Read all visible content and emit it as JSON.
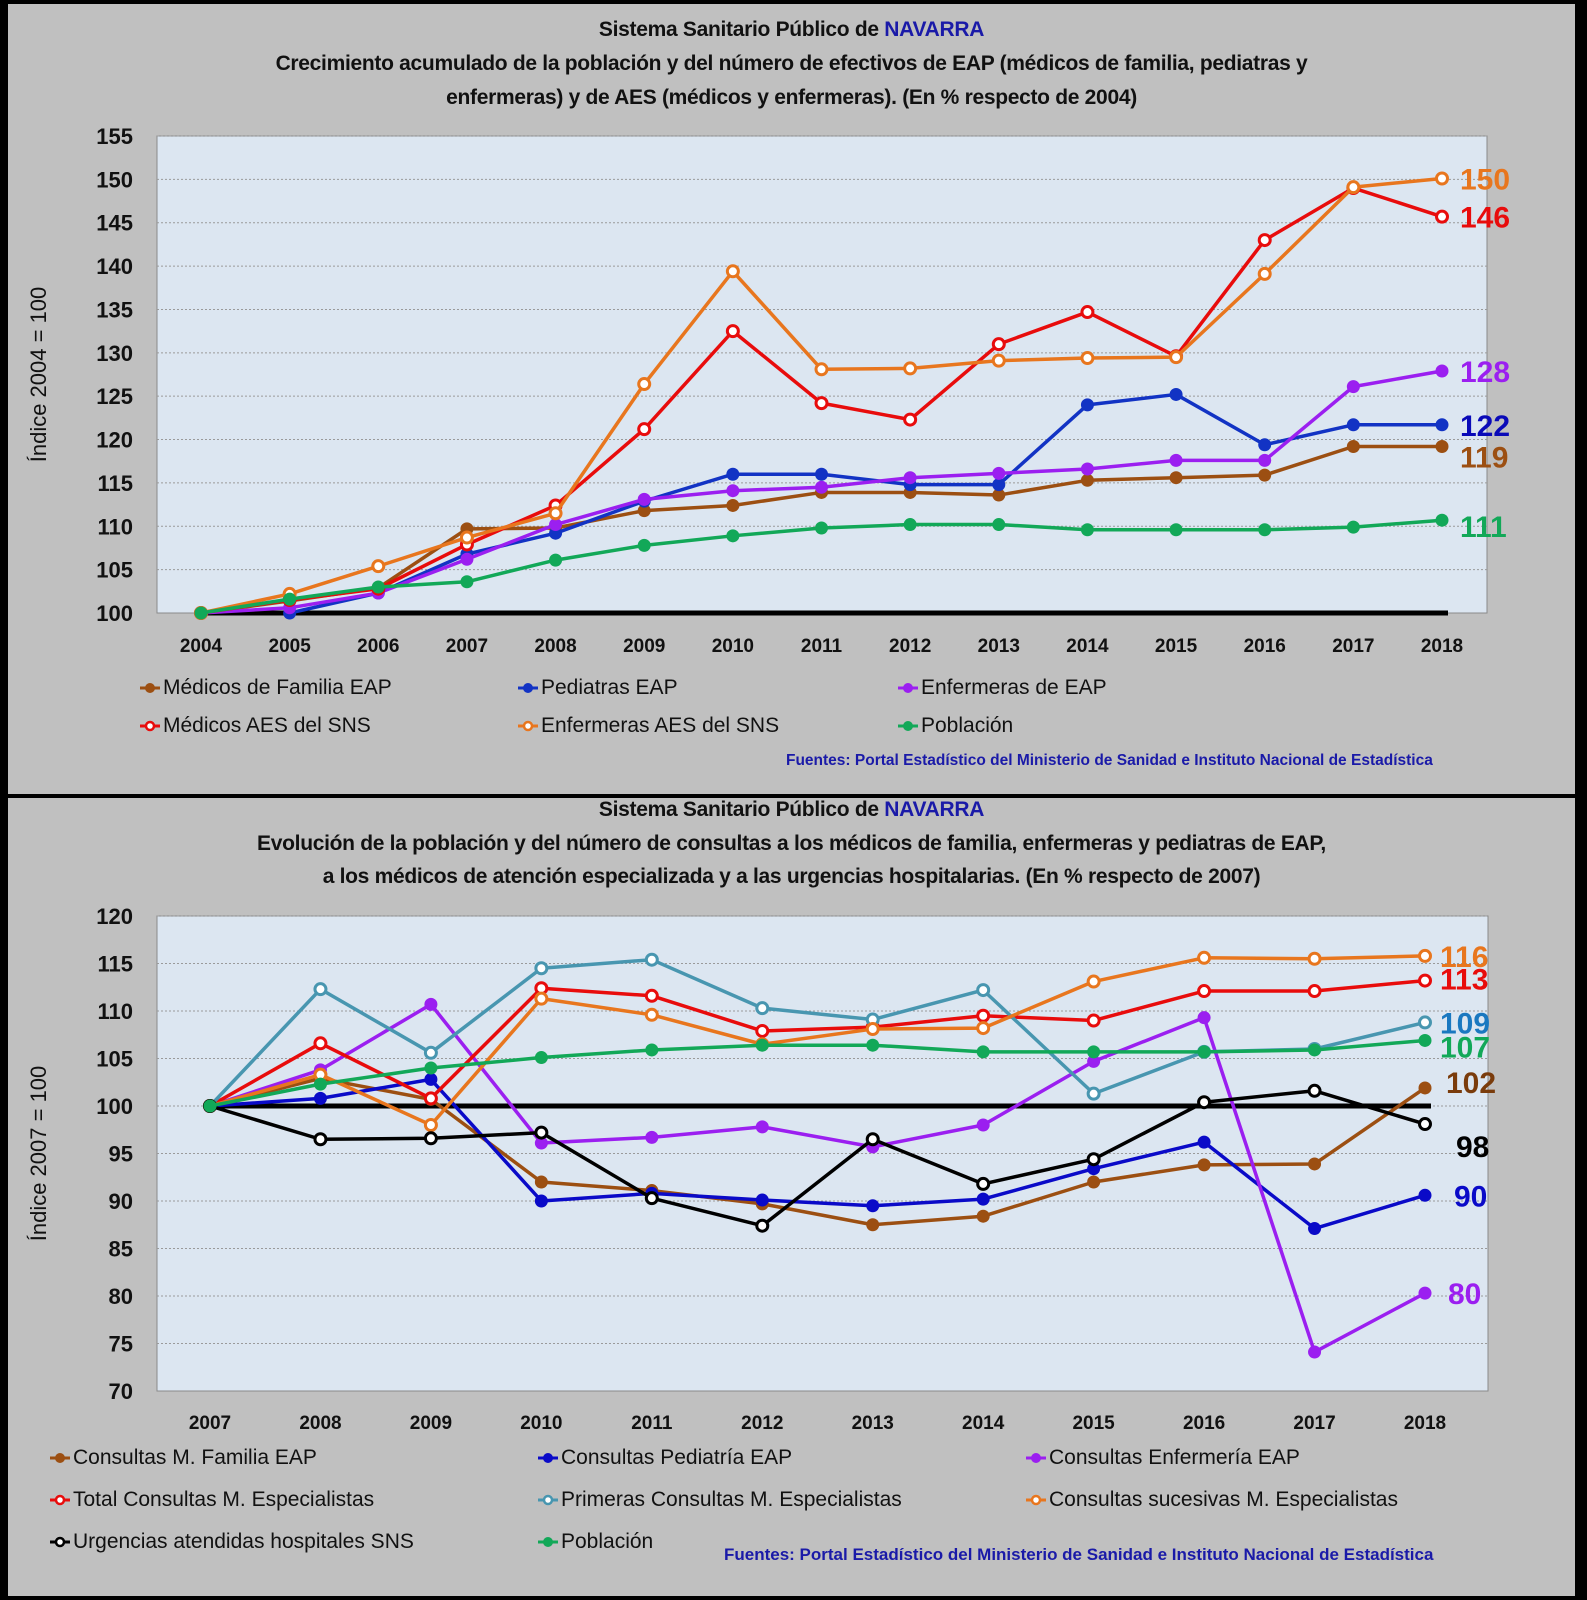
{
  "panel1": {
    "title_line1_prefix": "Sistema Sanitario Público de ",
    "title_region": "NAVARRA",
    "title_line2": "Crecimiento acumulado de la población y del número de efectivos de EAP (médicos de familia, pediatras y",
    "title_line3": "enfermeras) y de AES (médicos y enfermeras). (En % respecto de 2004)",
    "source": "Fuentes:  Portal Estadístico del Ministerio de Sanidad e Instituto Nacional de Estadística"
  },
  "panel2": {
    "title_line1_prefix": "Sistema Sanitario Público de ",
    "title_region": "NAVARRA",
    "title_line2": "Evolución de la población y del número de consultas a los médicos de familia, enfermeras y pediatras de EAP,",
    "title_line3": "a los médicos de atención especializada y a las urgencias hospitalarias. (En % respecto de 2007)",
    "source": "Fuentes: Portal Estadístico del Ministerio de Sanidad e Instituto Nacional de Estadística"
  },
  "chart_data": [
    {
      "type": "line",
      "title": "Crecimiento acumulado de la población y del número de efectivos de EAP (médicos de familia, pediatras y enfermeras) y de AES (médicos y enfermeras). (En % respecto de 2004)",
      "xlabel": "",
      "ylabel": "Índice 2004 = 100",
      "ylim": [
        100,
        155
      ],
      "yticks": [
        100,
        105,
        110,
        115,
        120,
        125,
        130,
        135,
        140,
        145,
        150,
        155
      ],
      "grid": true,
      "legend": "bottom",
      "baseline": 100,
      "categories": [
        "2004",
        "2005",
        "2006",
        "2007",
        "2008",
        "2009",
        "2010",
        "2011",
        "2012",
        "2013",
        "2014",
        "2015",
        "2016",
        "2017",
        "2018"
      ],
      "series": [
        {
          "name": "Médicos de Familia EAP",
          "color": "#9c4f12",
          "marker": "filled",
          "end_label": "119",
          "values": [
            100,
            101.4,
            102.9,
            109.7,
            109.8,
            111.8,
            112.4,
            113.9,
            113.9,
            113.6,
            115.3,
            115.6,
            115.9,
            119.2,
            119.2
          ]
        },
        {
          "name": "Pediatras EAP",
          "color": "#1233c4",
          "marker": "filled",
          "end_label": "122",
          "values": [
            null,
            100,
            102.3,
            106.8,
            109.2,
            112.9,
            116.0,
            116.0,
            114.8,
            114.8,
            124.0,
            125.2,
            119.4,
            121.7,
            121.7
          ]
        },
        {
          "name": "Enfermeras de EAP",
          "color": "#9b1ff0",
          "marker": "filled",
          "end_label": "128",
          "values": [
            100,
            100.6,
            102.3,
            106.2,
            110.2,
            113.1,
            114.1,
            114.5,
            115.6,
            116.1,
            116.6,
            117.6,
            117.6,
            126.1,
            127.9
          ]
        },
        {
          "name": "Médicos AES del SNS",
          "color": "#e80c0c",
          "marker": "open",
          "end_label": "146",
          "values": [
            100,
            101.5,
            102.8,
            107.9,
            112.4,
            121.2,
            132.5,
            124.2,
            122.3,
            131.0,
            134.7,
            129.6,
            143.0,
            149.0,
            145.7
          ]
        },
        {
          "name": "Enfermeras AES del SNS",
          "color": "#e8761e",
          "marker": "open",
          "end_label": "150",
          "values": [
            100,
            102.2,
            105.4,
            108.7,
            111.5,
            126.4,
            139.4,
            128.1,
            128.2,
            129.1,
            129.4,
            129.5,
            139.1,
            149.1,
            150.1
          ]
        },
        {
          "name": "Población",
          "color": "#12a858",
          "marker": "filled",
          "end_label": "111",
          "values": [
            100,
            101.6,
            103.0,
            103.6,
            106.1,
            107.8,
            108.9,
            109.8,
            110.2,
            110.2,
            109.6,
            109.6,
            109.6,
            109.9,
            110.7
          ]
        }
      ]
    },
    {
      "type": "line",
      "title": "Evolución de la población y del número de consultas a los médicos de familia, enfermeras y pediatras de EAP, a los médicos de atención especializada y a las urgencias hospitalarias. (En % respecto de 2007)",
      "xlabel": "",
      "ylabel": "Índice 2007 = 100",
      "ylim": [
        70,
        120
      ],
      "yticks": [
        70,
        75,
        80,
        85,
        90,
        95,
        100,
        105,
        110,
        115,
        120
      ],
      "grid": true,
      "legend": "bottom",
      "baseline": 100,
      "categories": [
        "2007",
        "2008",
        "2009",
        "2010",
        "2011",
        "2012",
        "2013",
        "2014",
        "2015",
        "2016",
        "2017",
        "2018"
      ],
      "series": [
        {
          "name": "Consultas M. Familia EAP",
          "color": "#9c4f12",
          "marker": "filled",
          "end_label": "102",
          "values": [
            100,
            102.9,
            100.7,
            92.0,
            91.1,
            89.7,
            87.5,
            88.4,
            92.0,
            93.8,
            93.9,
            101.9
          ]
        },
        {
          "name": "Consultas Pediatría EAP",
          "color": "#0a0ac8",
          "marker": "filled",
          "end_label": "90",
          "values": [
            100,
            100.8,
            102.8,
            90.0,
            90.8,
            90.1,
            89.5,
            90.2,
            93.4,
            96.2,
            87.1,
            90.6
          ]
        },
        {
          "name": "Consultas Enfermería EAP",
          "color": "#9b1ff0",
          "marker": "filled",
          "end_label": "80",
          "values": [
            100,
            103.8,
            110.7,
            96.1,
            96.7,
            97.8,
            95.7,
            98.0,
            104.7,
            109.3,
            74.1,
            80.3
          ]
        },
        {
          "name": "Total Consultas M. Especialistas",
          "color": "#e80c0c",
          "marker": "open",
          "end_label": "113",
          "values": [
            100,
            106.6,
            100.8,
            112.4,
            111.6,
            107.9,
            108.3,
            109.5,
            109.0,
            112.1,
            112.1,
            113.2
          ]
        },
        {
          "name": "Primeras Consultas M. Especialistas",
          "color": "#4896b0",
          "marker": "open",
          "end_label": "109",
          "values": [
            100,
            112.3,
            105.6,
            114.5,
            115.4,
            110.3,
            109.1,
            112.2,
            101.3,
            105.7,
            106.0,
            108.8
          ]
        },
        {
          "name": "Consultas sucesivas M. Especialistas",
          "color": "#e8761e",
          "marker": "open",
          "end_label": "116",
          "values": [
            100,
            103.3,
            98.0,
            111.3,
            109.6,
            106.5,
            108.1,
            108.2,
            113.1,
            115.6,
            115.5,
            115.8
          ]
        },
        {
          "name": "Urgencias atendidas hospitales SNS",
          "color": "#000000",
          "marker": "open",
          "end_label": "98",
          "values": [
            100,
            96.5,
            96.6,
            97.2,
            90.3,
            87.4,
            96.5,
            91.8,
            94.4,
            100.4,
            101.6,
            98.1
          ]
        },
        {
          "name": "Población",
          "color": "#12a858",
          "marker": "filled",
          "end_label": "107",
          "values": [
            100,
            102.3,
            104.0,
            105.1,
            105.9,
            106.4,
            106.4,
            105.7,
            105.7,
            105.7,
            105.9,
            106.9
          ]
        }
      ]
    }
  ],
  "end_label_colors": {
    "panel1": [
      "#9c4f12",
      "#0a0ab8",
      "#9b1ff0",
      "#e80c0c",
      "#e8761e",
      "#12a858"
    ],
    "panel2": [
      "#7a3c0c",
      "#0a0ac8",
      "#9b1ff0",
      "#e80c0c",
      "#1a78c0",
      "#e8761e",
      "#000000",
      "#12a858"
    ]
  }
}
